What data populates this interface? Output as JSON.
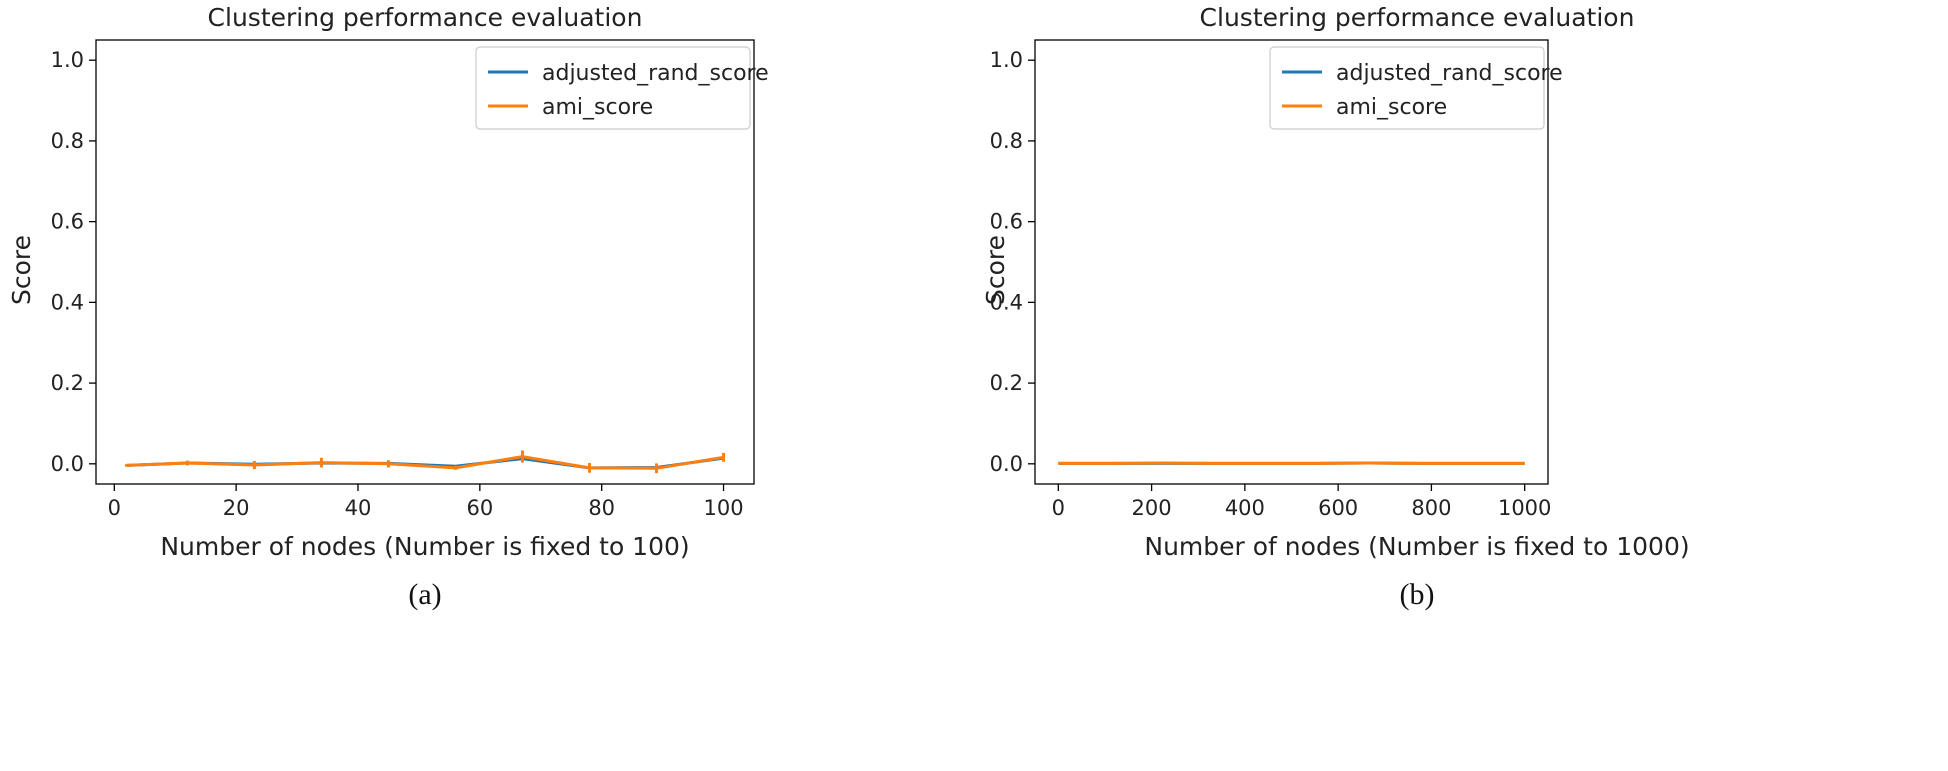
{
  "chart_data": [
    {
      "type": "line",
      "title": "Clustering performance evaluation",
      "xlabel": "Number of nodes (Number is fixed to 100)",
      "ylabel": "Score",
      "caption": "(a)",
      "xlim": [
        -3,
        105
      ],
      "ylim": [
        -0.05,
        1.05
      ],
      "xticks": [
        0,
        20,
        40,
        60,
        80,
        100
      ],
      "xtick_labels": [
        "0",
        "20",
        "40",
        "60",
        "80",
        "100"
      ],
      "yticks": [
        0.0,
        0.2,
        0.4,
        0.6,
        0.8,
        1.0
      ],
      "ytick_labels": [
        "0.0",
        "0.2",
        "0.4",
        "0.6",
        "0.8",
        "1.0"
      ],
      "grid": false,
      "legend_position": "top-right",
      "x": [
        2,
        12,
        23,
        34,
        45,
        56,
        67,
        78,
        89,
        100
      ],
      "series": [
        {
          "name": "adjusted_rand_score",
          "color": "#1f77b4",
          "values": [
            -0.004,
            0.002,
            -0.001,
            0.002,
            0.001,
            -0.006,
            0.013,
            -0.01,
            -0.009,
            0.014
          ]
        },
        {
          "name": "ami_score",
          "color": "#ff7f0e",
          "values": [
            -0.004,
            0.002,
            -0.003,
            0.003,
            0.0,
            -0.01,
            0.018,
            -0.01,
            -0.011,
            0.016
          ],
          "error": [
            0.003,
            0.006,
            0.01,
            0.012,
            0.009,
            0.005,
            0.015,
            0.012,
            0.012,
            0.011
          ]
        }
      ]
    },
    {
      "type": "line",
      "title": "Clustering performance evaluation",
      "xlabel": "Number of nodes (Number is fixed to 1000)",
      "ylabel": "Score",
      "caption": "(b)",
      "xlim": [
        -50,
        1050
      ],
      "ylim": [
        -0.05,
        1.05
      ],
      "xticks": [
        0,
        200,
        400,
        600,
        800,
        1000
      ],
      "xtick_labels": [
        "0",
        "200",
        "400",
        "600",
        "800",
        "1000"
      ],
      "yticks": [
        0.0,
        0.2,
        0.4,
        0.6,
        0.8,
        1.0
      ],
      "ytick_labels": [
        "0.0",
        "0.2",
        "0.4",
        "0.6",
        "0.8",
        "1.0"
      ],
      "grid": false,
      "legend_position": "top-right",
      "x": [
        0,
        111,
        222,
        333,
        444,
        555,
        666,
        777,
        888,
        1000
      ],
      "series": [
        {
          "name": "adjusted_rand_score",
          "color": "#1f77b4",
          "values": [
            0.001,
            0.001,
            0.001,
            0.001,
            0.001,
            0.001,
            0.002,
            0.001,
            0.001,
            0.001
          ]
        },
        {
          "name": "ami_score",
          "color": "#ff7f0e",
          "values": [
            0.001,
            0.001,
            0.002,
            0.001,
            0.001,
            0.001,
            0.002,
            0.001,
            0.001,
            0.001
          ]
        }
      ]
    }
  ]
}
